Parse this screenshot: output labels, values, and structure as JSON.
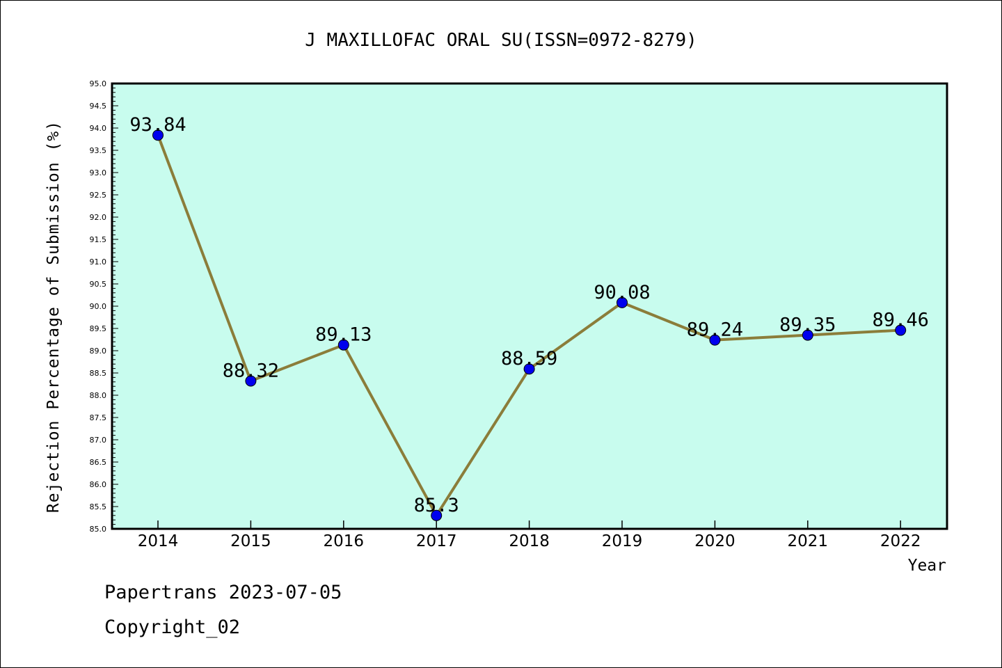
{
  "chart_data": {
    "type": "line",
    "title": "J MAXILLOFAC ORAL SU(ISSN=0972-8279)",
    "xlabel": "Year",
    "ylabel": "Rejection Percentage of Submission (%)",
    "categories": [
      "2014",
      "2015",
      "2016",
      "2017",
      "2018",
      "2019",
      "2020",
      "2021",
      "2022"
    ],
    "series": [
      {
        "values": [
          93.84,
          88.32,
          89.13,
          85.3,
          88.59,
          90.08,
          89.24,
          89.35,
          89.46
        ],
        "labels": [
          "93.84",
          "88.32",
          "89.13",
          "85.3",
          "88.59",
          "90.08",
          "89.24",
          "89.35",
          "89.46"
        ]
      }
    ],
    "ylim": [
      85.0,
      95.0
    ],
    "ytick_step": 0.5,
    "grid": false,
    "colors": {
      "plot_background": "#c8fcee",
      "line": "#8b7d3a",
      "marker": "#0000ee"
    }
  },
  "footer": {
    "line1": "Papertrans 2023-07-05",
    "line2": "Copyright_02"
  }
}
